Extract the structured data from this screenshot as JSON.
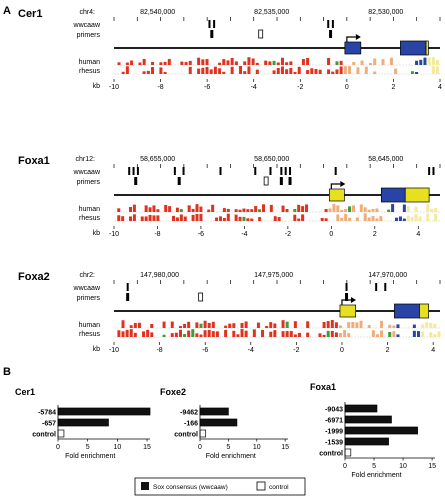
{
  "panel_labels": [
    "A",
    "B"
  ],
  "colors": {
    "red": "#e0321e",
    "green": "#3e9a3a",
    "blue": "#2845a5",
    "yellow": "#e6e020",
    "peach": "#f0ad7a",
    "lightyellow": "#f3ea9a",
    "black": "#000000"
  },
  "loci": [
    {
      "name": "Cer1",
      "chr": "chr4:",
      "coords": [
        "82,540,000",
        "82,535,000",
        "82,530,000"
      ],
      "row_labels": [
        "wwcaaw",
        "primers",
        "human",
        "rhesus",
        "kb"
      ],
      "kb_ticks": [
        "-10",
        "-8",
        "-6",
        "-4",
        "-2",
        "0",
        "2",
        "4"
      ],
      "kb_min": -10,
      "kb_max": 4,
      "wwcaaw_kb": [
        -5.9,
        -5.7,
        -0.8,
        -0.6
      ],
      "primers_kb": [
        -5.8,
        -0.7
      ],
      "control_primer_kb": -3.7
    },
    {
      "name": "Foxa1",
      "chr": "chr12:",
      "coords": [
        "58,655,000",
        "58,650,000",
        "58,645,000"
      ],
      "row_labels": [
        "wwcaaw",
        "primers",
        "human",
        "rhesus",
        "kb"
      ],
      "kb_ticks": [
        "-10",
        "-8",
        "-6",
        "-4",
        "-2",
        "0",
        "2",
        "4"
      ],
      "kb_min": -10,
      "kb_max": 5,
      "wwcaaw_kb": [
        -9.3,
        -9.1,
        -8.9,
        -7.2,
        -6.8,
        -5.1,
        -3.5,
        -2.8,
        -2.3,
        -2.1,
        -1.9,
        0.2,
        4.5,
        4.7
      ],
      "primers_kb": [
        -9.0,
        -7.0,
        -2.3,
        -1.9
      ],
      "control_primer_kb": -3.0
    },
    {
      "name": "Foxa2",
      "chr": "chr2:",
      "coords": [
        "147,980,000",
        "147,975,000",
        "147,970,000"
      ],
      "row_labels": [
        "wwcaaw",
        "primers",
        "human",
        "rhesus",
        "kb"
      ],
      "kb_ticks": [
        "-10",
        "-8",
        "-6",
        "-4",
        "-2",
        "0",
        "2",
        "4"
      ],
      "kb_min": -10,
      "kb_max": 4.3,
      "wwcaaw_kb": [
        -9.4,
        0.2,
        1.5,
        1.9
      ],
      "primers_kb": [
        -9.4,
        0.2
      ],
      "control_primer_kb": -6.2
    }
  ],
  "chart_data": [
    {
      "type": "bar",
      "title": "Cer1",
      "orientation": "horizontal",
      "categories": [
        "-5784",
        "-657",
        "control"
      ],
      "values": [
        15.5,
        8.5,
        1.0
      ],
      "xlabel": "Fold enrichment",
      "xticks": [
        "0",
        "5",
        "10",
        "15"
      ],
      "xlim": [
        0,
        15.5
      ]
    },
    {
      "type": "bar",
      "title": "Foxe2",
      "orientation": "horizontal",
      "categories": [
        "-9462",
        "-166",
        "control"
      ],
      "values": [
        5.0,
        6.5,
        1.0
      ],
      "xlabel": "Fold enrichment",
      "xticks": [
        "0",
        "5",
        "10",
        "15"
      ],
      "xlim": [
        0,
        15.5
      ]
    },
    {
      "type": "bar",
      "title": "Foxa1",
      "orientation": "horizontal",
      "categories": [
        "-9043",
        "-6971",
        "-1999",
        "-1539",
        "control"
      ],
      "values": [
        5.5,
        8.0,
        12.5,
        7.5,
        1.0
      ],
      "xlabel": "Fold enrichment",
      "xticks": [
        "0",
        "5",
        "10",
        "15"
      ],
      "xlim": [
        0,
        15.5
      ]
    }
  ],
  "legend": {
    "items": [
      {
        "label": "Sox consensus (wwcaaw)",
        "fill": "black"
      },
      {
        "label": "control",
        "fill": "white"
      }
    ]
  }
}
